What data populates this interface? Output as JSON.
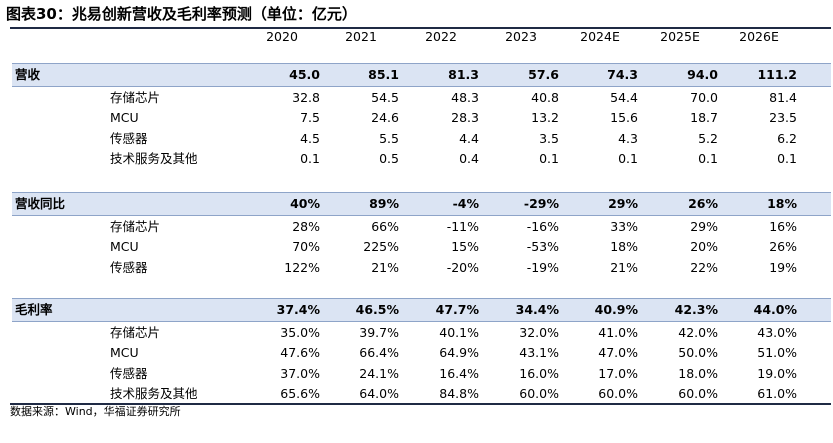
{
  "title": "图表30：兆易创新营收及毛利率预测（单位：亿元）",
  "years": [
    "2020",
    "2021",
    "2022",
    "2023",
    "2024E",
    "2025E",
    "2026E"
  ],
  "sections": [
    {
      "label": "营收",
      "values": [
        "45.0",
        "85.1",
        "81.3",
        "57.6",
        "74.3",
        "94.0",
        "111.2"
      ],
      "rows": [
        {
          "label": "存储芯片",
          "values": [
            "32.8",
            "54.5",
            "48.3",
            "40.8",
            "54.4",
            "70.0",
            "81.4"
          ]
        },
        {
          "label": "MCU",
          "values": [
            "7.5",
            "24.6",
            "28.3",
            "13.2",
            "15.6",
            "18.7",
            "23.5"
          ]
        },
        {
          "label": "传感器",
          "values": [
            "4.5",
            "5.5",
            "4.4",
            "3.5",
            "4.3",
            "5.2",
            "6.2"
          ]
        },
        {
          "label": "技术服务及其他",
          "values": [
            "0.1",
            "0.5",
            "0.4",
            "0.1",
            "0.1",
            "0.1",
            "0.1"
          ]
        }
      ]
    },
    {
      "label": "营收同比",
      "values": [
        "40%",
        "89%",
        "-4%",
        "-29%",
        "29%",
        "26%",
        "18%"
      ],
      "rows": [
        {
          "label": "存储芯片",
          "values": [
            "28%",
            "66%",
            "-11%",
            "-16%",
            "33%",
            "29%",
            "16%"
          ]
        },
        {
          "label": "MCU",
          "values": [
            "70%",
            "225%",
            "15%",
            "-53%",
            "18%",
            "20%",
            "26%"
          ]
        },
        {
          "label": "传感器",
          "values": [
            "122%",
            "21%",
            "-20%",
            "-19%",
            "21%",
            "22%",
            "19%"
          ]
        }
      ]
    },
    {
      "label": "毛利率",
      "values": [
        "37.4%",
        "46.5%",
        "47.7%",
        "34.4%",
        "40.9%",
        "42.3%",
        "44.0%"
      ],
      "rows": [
        {
          "label": "存储芯片",
          "values": [
            "35.0%",
            "39.7%",
            "40.1%",
            "32.0%",
            "41.0%",
            "42.0%",
            "43.0%"
          ]
        },
        {
          "label": "MCU",
          "values": [
            "47.6%",
            "66.4%",
            "64.9%",
            "43.1%",
            "47.0%",
            "50.0%",
            "51.0%"
          ]
        },
        {
          "label": "传感器",
          "values": [
            "37.0%",
            "24.1%",
            "16.4%",
            "16.0%",
            "17.0%",
            "18.0%",
            "19.0%"
          ]
        },
        {
          "label": "技术服务及其他",
          "values": [
            "65.6%",
            "64.0%",
            "84.8%",
            "60.0%",
            "60.0%",
            "60.0%",
            "61.0%"
          ]
        }
      ]
    }
  ],
  "footnote": "数据来源：Wind，华福证券研究所"
}
